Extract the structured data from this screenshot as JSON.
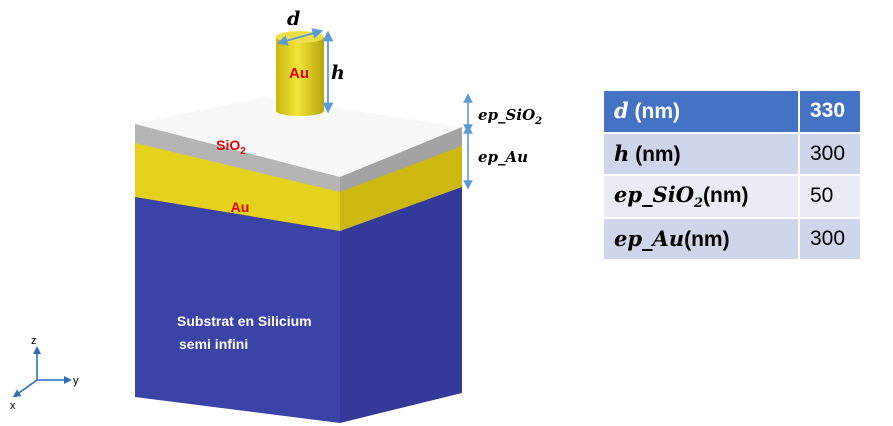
{
  "diagram": {
    "cylinder": {
      "material": "Au",
      "dimension_d": "d",
      "dimension_h": "h"
    },
    "layers": {
      "sio2": {
        "material": "SiO",
        "material_sub": "2",
        "thickness_label": "ep_SiO",
        "thickness_label_sub": "2"
      },
      "au": {
        "material": "Au",
        "thickness_label": "ep_Au"
      },
      "substrate": {
        "line1": "Substrat en Silicium",
        "line2": "semi infini"
      }
    },
    "axes": {
      "z": "z",
      "y": "y",
      "x": "x"
    }
  },
  "table": {
    "rows": [
      {
        "symbol": "d",
        "symbol_sub": "",
        "unit": " (nm)",
        "value": "330"
      },
      {
        "symbol": "h",
        "symbol_sub": "",
        "unit": " (nm)",
        "value": "300"
      },
      {
        "symbol": "ep_SiO",
        "symbol_sub": "2",
        "unit": "(nm)",
        "value": "50"
      },
      {
        "symbol": "ep_Au",
        "symbol_sub": "",
        "unit": "(nm)",
        "value": "300"
      }
    ]
  },
  "colors": {
    "gold": "#e6d31a",
    "silica": "#b4b4b4",
    "silica_top": "#f8f8f8",
    "substrate": "#3a40a6",
    "arrow": "#5b9bd5",
    "label_red": "#e00000",
    "table_header": "#4472c4",
    "table_row_odd": "#cfd5ea",
    "table_row_even": "#e9ebf5"
  }
}
